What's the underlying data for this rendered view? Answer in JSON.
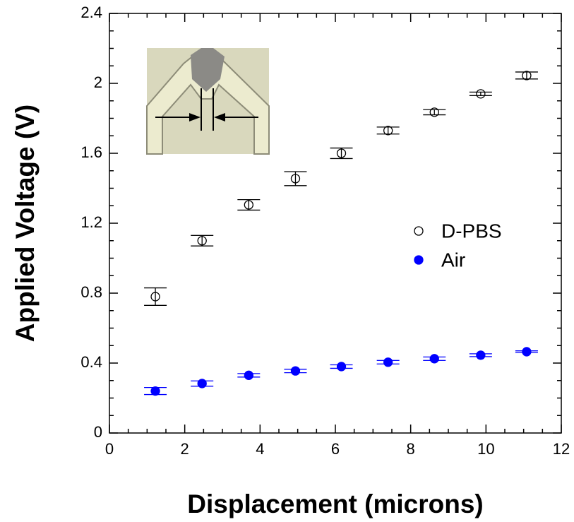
{
  "chart_data": {
    "type": "scatter",
    "x_label": "Displacement (microns)",
    "y_label": "Applied Voltage (V)",
    "x": [
      1.22,
      2.46,
      3.7,
      4.94,
      6.16,
      7.4,
      8.63,
      9.86,
      11.08
    ],
    "series": [
      {
        "name": "D-PBS",
        "color": "#000000",
        "filled": false,
        "values": [
          0.78,
          1.1,
          1.305,
          1.455,
          1.6,
          1.73,
          1.835,
          1.94,
          2.045
        ],
        "errors": [
          0.05,
          0.03,
          0.03,
          0.04,
          0.03,
          0.02,
          0.015,
          0.01,
          0.02
        ]
      },
      {
        "name": "Air",
        "color": "#0000ff",
        "filled": true,
        "values": [
          0.24,
          0.283,
          0.33,
          0.355,
          0.38,
          0.405,
          0.425,
          0.445,
          0.465
        ],
        "errors": [
          0.02,
          0.015,
          0.01,
          0.01,
          0.01,
          0.01,
          0.01,
          0.008,
          0.005
        ]
      }
    ],
    "xlim": [
      0,
      12
    ],
    "xticks": [
      0,
      2,
      4,
      6,
      8,
      10,
      12
    ],
    "ylim": [
      0,
      2.4
    ],
    "yticks": [
      0,
      0.4,
      0.8,
      1.2,
      1.6,
      2,
      2.4
    ],
    "legend": "right"
  }
}
